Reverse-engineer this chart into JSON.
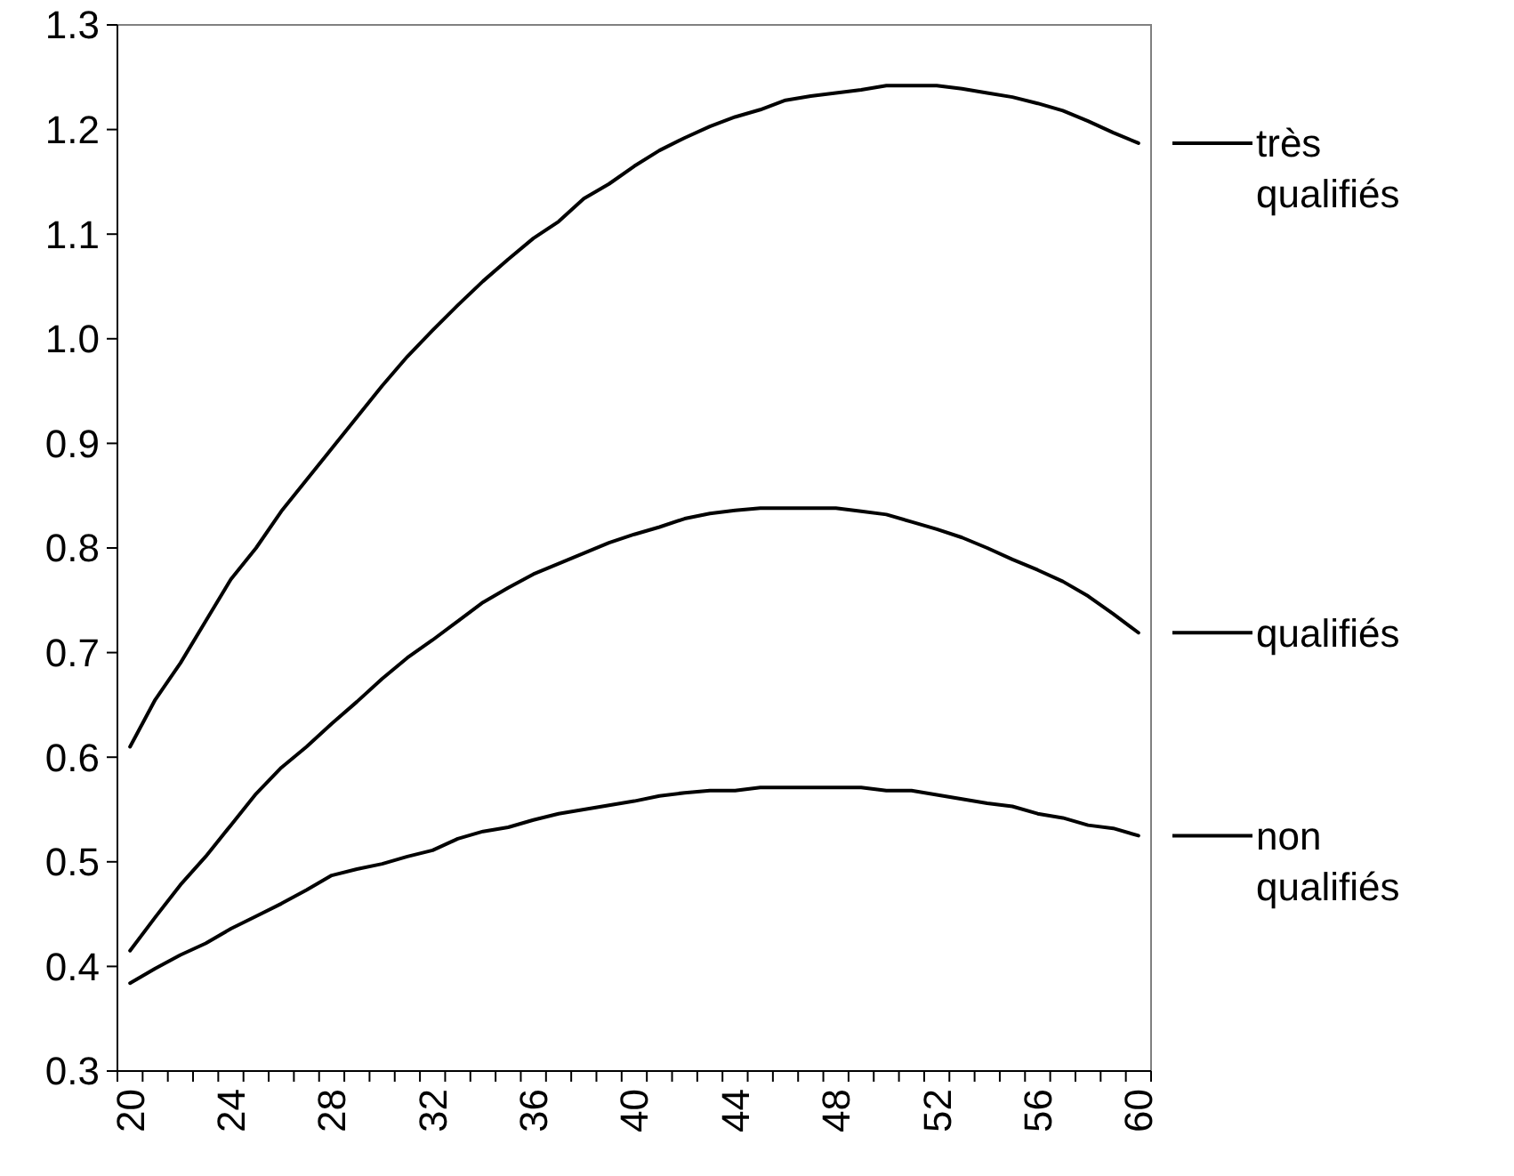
{
  "chart_data": {
    "type": "line",
    "categories": [
      "20",
      null,
      null,
      null,
      "24",
      null,
      null,
      null,
      "28",
      null,
      null,
      null,
      "32",
      null,
      null,
      null,
      "36",
      null,
      null,
      null,
      "40",
      null,
      null,
      null,
      "44",
      null,
      null,
      null,
      "48",
      null,
      null,
      null,
      "52",
      null,
      null,
      null,
      "56",
      null,
      null,
      null,
      "60"
    ],
    "series": [
      {
        "name": "très qualifiés",
        "color": "#000000",
        "values": [
          0.61,
          0.655,
          0.69,
          0.73,
          0.77,
          0.8,
          0.835,
          0.865,
          0.895,
          0.925,
          0.955,
          0.983,
          1.008,
          1.032,
          1.055,
          1.076,
          1.096,
          1.112,
          1.134,
          1.148,
          1.165,
          1.18,
          1.192,
          1.203,
          1.212,
          1.219,
          1.228,
          1.232,
          1.235,
          1.238,
          1.242,
          1.242,
          1.242,
          1.239,
          1.235,
          1.231,
          1.225,
          1.218,
          1.208,
          1.197,
          1.187
        ]
      },
      {
        "name": "qualifiés",
        "color": "#000000",
        "values": [
          0.415,
          0.447,
          0.478,
          0.505,
          0.535,
          0.565,
          0.59,
          0.61,
          0.632,
          0.653,
          0.675,
          0.695,
          0.712,
          0.73,
          0.748,
          0.762,
          0.775,
          0.785,
          0.795,
          0.805,
          0.813,
          0.82,
          0.828,
          0.833,
          0.836,
          0.838,
          0.838,
          0.838,
          0.838,
          0.835,
          0.832,
          0.825,
          0.818,
          0.81,
          0.8,
          0.789,
          0.779,
          0.768,
          0.754,
          0.737,
          0.719
        ]
      },
      {
        "name": "non qualifiés",
        "color": "#000000",
        "values": [
          0.384,
          0.398,
          0.411,
          0.422,
          0.436,
          0.448,
          0.46,
          0.473,
          0.487,
          0.493,
          0.498,
          0.505,
          0.511,
          0.522,
          0.529,
          0.533,
          0.54,
          0.546,
          0.55,
          0.554,
          0.558,
          0.563,
          0.566,
          0.568,
          0.568,
          0.571,
          0.571,
          0.571,
          0.571,
          0.571,
          0.568,
          0.568,
          0.564,
          0.56,
          0.556,
          0.553,
          0.546,
          0.542,
          0.535,
          0.532,
          0.525
        ]
      }
    ],
    "ylim": [
      0.3,
      1.3
    ],
    "yticks": [
      0.3,
      0.4,
      0.5,
      0.6,
      0.7,
      0.8,
      0.9,
      {
        "value": 1.0,
        "label": "1.0"
      },
      1.1,
      1.2,
      1.3
    ],
    "grid": false,
    "legend": "right",
    "marker": "none",
    "line_style": "solid"
  }
}
